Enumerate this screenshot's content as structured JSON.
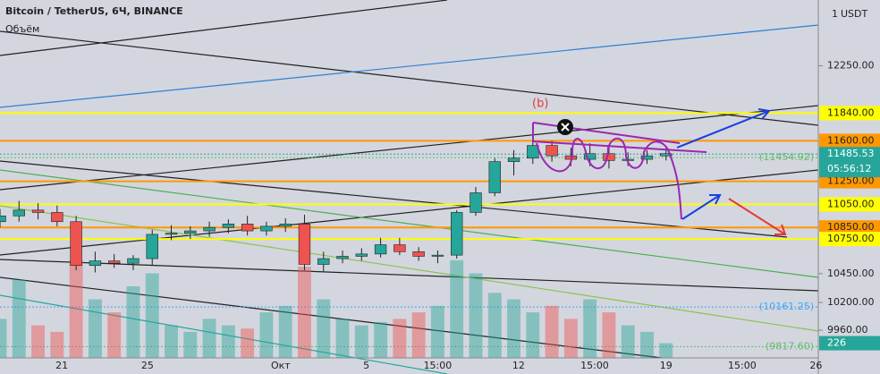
{
  "chart_data": {
    "type": "candlestick",
    "title": "Bitcoin / TetherUS, 6Ч, BINANCE",
    "volume_name": "Объём",
    "axis_multiplier": "1",
    "axis_currency": "USDT",
    "annotation": "(b)",
    "xlim": [
      0,
      172
    ],
    "ylim": [
      9720,
      12820
    ],
    "vlim": [
      0,
      5500
    ],
    "up_color": "#26a69a",
    "down_color": "#ef5350",
    "x": [
      0,
      4,
      8,
      12,
      16,
      20,
      24,
      28,
      32,
      36,
      40,
      44,
      48,
      52,
      56,
      60,
      64,
      68,
      72,
      76,
      80,
      84,
      88,
      92,
      96,
      100,
      104,
      108,
      112,
      116,
      120,
      124,
      128,
      132,
      136,
      140
    ],
    "open": [
      10900,
      10950,
      11000,
      10980,
      10900,
      10520,
      10560,
      10540,
      10580,
      10790,
      10800,
      10820,
      10850,
      10880,
      10820,
      10860,
      10880,
      10530,
      10580,
      10600,
      10620,
      10700,
      10640,
      10600,
      10610,
      10980,
      11150,
      11420,
      11450,
      11560,
      11470,
      11440,
      11490,
      11430,
      11440,
      11470
    ],
    "high": [
      11010,
      11080,
      11060,
      11040,
      10950,
      10640,
      10620,
      10610,
      10830,
      10870,
      10860,
      10900,
      10920,
      10950,
      10900,
      10930,
      10960,
      10640,
      10650,
      10670,
      10760,
      10760,
      10680,
      10650,
      11000,
      11200,
      11450,
      11520,
      11620,
      11600,
      11540,
      11580,
      11560,
      11500,
      11520,
      11540
    ],
    "low": [
      10850,
      10900,
      10920,
      10860,
      10480,
      10460,
      10500,
      10480,
      10520,
      10740,
      10750,
      10770,
      10800,
      10780,
      10780,
      10810,
      10480,
      10470,
      10540,
      10560,
      10590,
      10610,
      10560,
      10540,
      10580,
      10950,
      11120,
      11300,
      11400,
      11420,
      11380,
      11380,
      11360,
      11380,
      11400,
      11430
    ],
    "close": [
      10950,
      11000,
      10980,
      10900,
      10520,
      10560,
      10540,
      10580,
      10790,
      10800,
      10820,
      10850,
      10880,
      10820,
      10860,
      10880,
      10530,
      10580,
      10600,
      10620,
      10700,
      10640,
      10600,
      10610,
      10980,
      11150,
      11420,
      11450,
      11560,
      11470,
      11440,
      11490,
      11430,
      11440,
      11470,
      11490
    ],
    "volume": [
      600,
      1200,
      500,
      400,
      1500,
      900,
      700,
      1100,
      1300,
      500,
      400,
      600,
      500,
      450,
      700,
      800,
      1400,
      900,
      600,
      500,
      550,
      600,
      700,
      800,
      1500,
      1300,
      1000,
      900,
      700,
      800,
      600,
      900,
      700,
      500,
      400,
      226
    ],
    "volume_label": {
      "value": 226,
      "label": "226"
    },
    "xticks": [
      {
        "value": 13,
        "label": "21"
      },
      {
        "value": 31,
        "label": "25"
      },
      {
        "value": 59,
        "label": "Окт"
      },
      {
        "value": 77,
        "label": "5"
      },
      {
        "value": 92,
        "label": "15:00"
      },
      {
        "value": 109,
        "label": "12"
      },
      {
        "value": 125,
        "label": "15:00"
      },
      {
        "value": 140,
        "label": "19"
      },
      {
        "value": 156,
        "label": "15:00"
      },
      {
        "value": 171.5,
        "label": "26"
      }
    ],
    "yticks": [
      {
        "value": 12250,
        "label": "12250.00"
      },
      {
        "value": 10450,
        "label": "10450.00"
      },
      {
        "value": 10200,
        "label": "10200.00"
      },
      {
        "value": 9960,
        "label": "9960.00"
      }
    ],
    "levels": [
      {
        "value": 11840,
        "label": "11840.00",
        "color": "#ffff00"
      },
      {
        "value": 11600,
        "label": "11600.00",
        "color": "#ff9800"
      },
      {
        "value": 11250,
        "label": "11250.00",
        "color": "#ff9800"
      },
      {
        "value": 11050,
        "label": "11050.00",
        "color": "#ffff00"
      },
      {
        "value": 10850,
        "label": "10850.00",
        "color": "#ff9800"
      },
      {
        "value": 10750,
        "label": "10750.00",
        "color": "#ffff00"
      }
    ],
    "last": {
      "value": 11485.53,
      "label": "11485.53",
      "countdown": "05:56:12",
      "color": "#26a69a"
    },
    "price_notes": [
      {
        "value": 11454.92,
        "label": "(11454.92)",
        "color": "#66bb6a"
      },
      {
        "value": 10161.25,
        "label": "(10161.25)",
        "color": "#42a5f5"
      },
      {
        "value": 9817.6,
        "label": "(9817.60)",
        "color": "#66bb6a"
      }
    ]
  }
}
